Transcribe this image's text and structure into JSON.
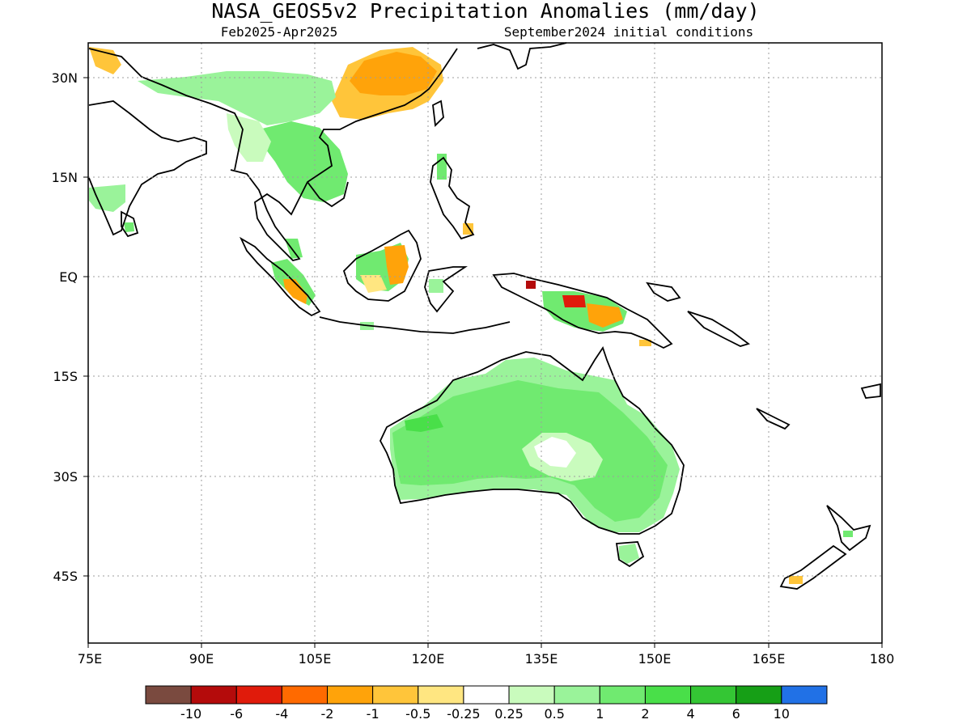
{
  "title": "NASA_GEOS5v2 Precipitation Anomalies (mm/day)",
  "subtitle_left": "Feb2025-Apr2025",
  "subtitle_right": "September2024 initial conditions",
  "lat_ticks": [
    "30N",
    "15N",
    "EQ",
    "15S",
    "30S",
    "45S"
  ],
  "lon_ticks": [
    "75E",
    "90E",
    "105E",
    "120E",
    "135E",
    "150E",
    "165E",
    "180"
  ],
  "legend": {
    "colors": [
      "#7a4a3f",
      "#b40b0b",
      "#e01b0b",
      "#ff6a00",
      "#ffa30a",
      "#ffc53a",
      "#ffe681",
      "#ffffff",
      "#c9fbbd",
      "#9af39a",
      "#70ea70",
      "#49df49",
      "#34c634",
      "#169f16",
      "#2171e6"
    ],
    "labels": [
      "-10",
      "-6",
      "-4",
      "-2",
      "-1",
      "-0.5",
      "-0.25",
      "0.25",
      "0.5",
      "1",
      "2",
      "4",
      "6",
      "10"
    ]
  }
}
